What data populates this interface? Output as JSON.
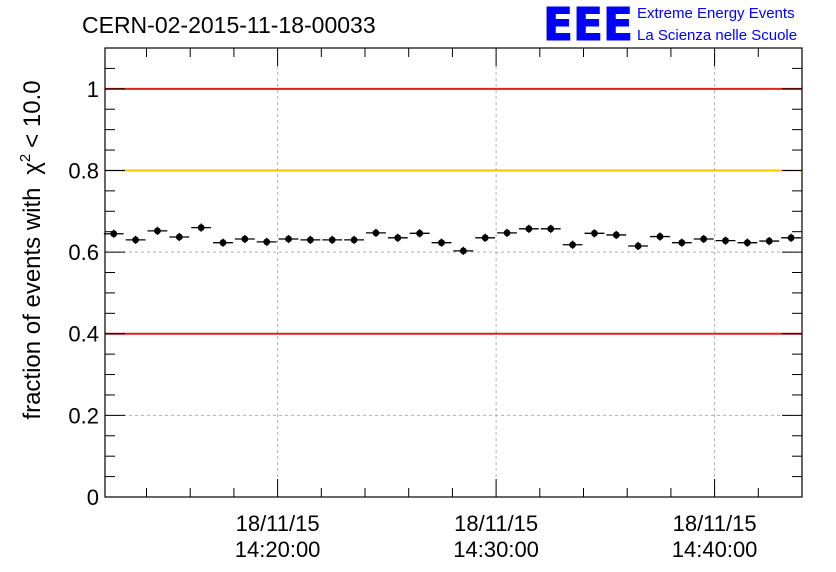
{
  "run_title": "CERN-02-2015-11-18-00033",
  "logo": {
    "mark": "EEE",
    "line1": "Extreme Energy Events",
    "line2": "La Scienza nelle Scuole",
    "color": "#0000ff"
  },
  "chart_data": {
    "type": "scatter",
    "title": "CERN-02-2015-11-18-00033",
    "ylabel_main": "fraction of events with",
    "ylabel_symbol": "χ",
    "ylabel_sup": "2",
    "ylabel_tail": "< 10.0",
    "ylim": [
      0,
      1.1
    ],
    "yticks": [
      {
        "value": 0,
        "label": "0"
      },
      {
        "value": 0.2,
        "label": "0.2"
      },
      {
        "value": 0.4,
        "label": "0.4"
      },
      {
        "value": 0.6,
        "label": "0.6"
      },
      {
        "value": 0.8,
        "label": "0.8"
      },
      {
        "value": 1,
        "label": "1"
      }
    ],
    "xlim_minutes": [
      12.1,
      44.0
    ],
    "xticks": [
      {
        "minute": 20,
        "date": "18/11/15",
        "time": "14:20:00"
      },
      {
        "minute": 30,
        "date": "18/11/15",
        "time": "14:30:00"
      },
      {
        "minute": 40,
        "date": "18/11/15",
        "time": "14:40:00"
      }
    ],
    "grid": true,
    "reference_lines": [
      {
        "value": 1.0,
        "color": "#e02020"
      },
      {
        "value": 0.8,
        "color": "#ffc000"
      },
      {
        "value": 0.4,
        "color": "#e02020"
      }
    ],
    "points_minutes": [
      12.5,
      13.5,
      14.5,
      15.5,
      16.5,
      17.5,
      18.5,
      19.5,
      20.5,
      21.5,
      22.5,
      23.5,
      24.5,
      25.5,
      26.5,
      27.5,
      28.5,
      29.5,
      30.5,
      31.5,
      32.5,
      33.5,
      34.5,
      35.5,
      36.5,
      37.5,
      38.5,
      39.5,
      40.5,
      41.5,
      42.5,
      43.5
    ],
    "values": [
      0.645,
      0.63,
      0.652,
      0.637,
      0.66,
      0.623,
      0.632,
      0.625,
      0.632,
      0.63,
      0.63,
      0.63,
      0.647,
      0.635,
      0.646,
      0.623,
      0.603,
      0.635,
      0.647,
      0.657,
      0.657,
      0.618,
      0.646,
      0.642,
      0.615,
      0.638,
      0.623,
      0.632,
      0.628,
      0.623,
      0.627,
      0.635
    ],
    "bin_halfwidth_minutes": 0.5,
    "error": 0.01
  }
}
